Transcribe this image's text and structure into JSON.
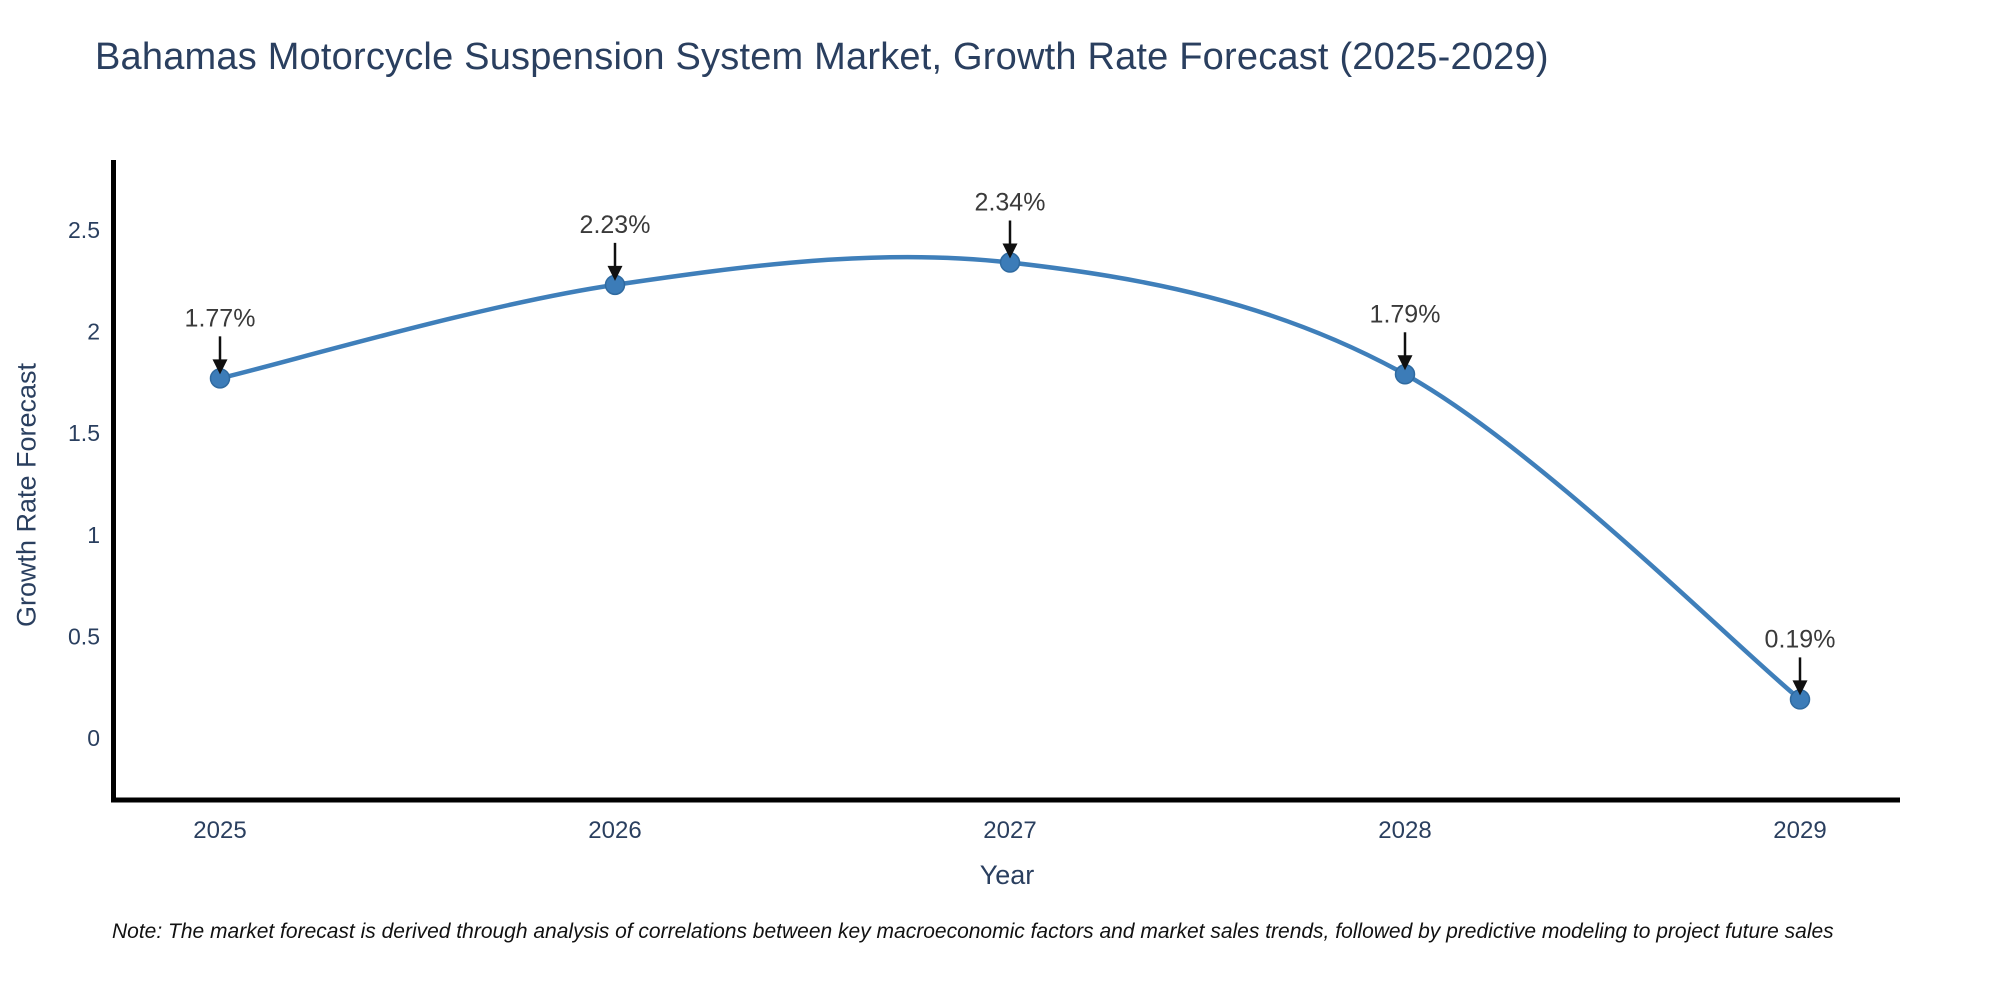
{
  "colors": {
    "line": "#3f7fba",
    "marker_fill": "#3c7cb8",
    "marker_edge": "#2f6aa0",
    "axis_line": "#000000",
    "title_text": "#2a3f5f",
    "tick_text": "#2a3f5f",
    "axis_title_text": "#2a3f5f",
    "annotation_text": "#3a3a3a",
    "arrow": "#101010",
    "note_text": "#111111",
    "background": "#ffffff"
  },
  "chart_data": {
    "type": "line",
    "title": "Bahamas Motorcycle Suspension System Market, Growth Rate Forecast (2025-2029)",
    "xlabel": "Year",
    "ylabel": "Growth Rate Forecast",
    "categories": [
      "2025",
      "2026",
      "2027",
      "2028",
      "2029"
    ],
    "values": [
      1.77,
      2.23,
      2.34,
      1.79,
      0.19
    ],
    "point_labels": [
      "1.77%",
      "2.23%",
      "2.34%",
      "1.79%",
      "0.19%"
    ],
    "ytick_labels": [
      "0",
      "0.5",
      "1",
      "1.5",
      "2",
      "2.5"
    ],
    "ytick_values": [
      0,
      0.5,
      1,
      1.5,
      2,
      2.5
    ],
    "ylim": [
      -0.31,
      2.85
    ],
    "line_shape": "spline",
    "markers": true,
    "grid": false,
    "legend_position": "none",
    "annotation_style": "value labels with downward arrows above each data point",
    "note": "Note: The market forecast is derived through analysis of correlations between key macroeconomic factors and market sales trends, followed by predictive modeling to project future sales"
  }
}
